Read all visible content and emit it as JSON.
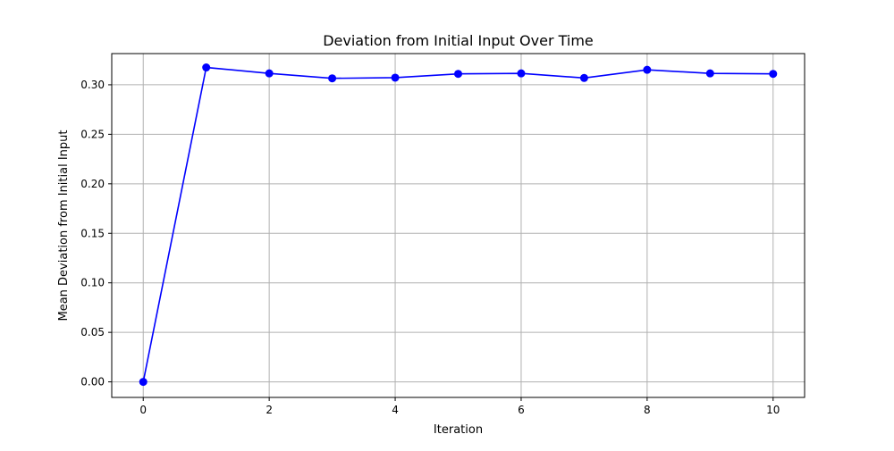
{
  "chart_data": {
    "type": "line",
    "title": "Deviation from Initial Input Over Time",
    "xlabel": "Iteration",
    "ylabel": "Mean Deviation from Initial Input",
    "xlim": [
      -0.5,
      10.5
    ],
    "ylim": [
      -0.0157,
      0.3315
    ],
    "x_ticks": [
      0,
      2,
      4,
      6,
      8,
      10
    ],
    "x_tick_labels": [
      "0",
      "2",
      "4",
      "6",
      "8",
      "10"
    ],
    "y_ticks": [
      0.0,
      0.05,
      0.1,
      0.15,
      0.2,
      0.25,
      0.3
    ],
    "y_tick_labels": [
      "0.00",
      "0.05",
      "0.10",
      "0.15",
      "0.20",
      "0.25",
      "0.30"
    ],
    "grid": true,
    "series": [
      {
        "color": "#0000ff",
        "marker": "circle",
        "x": [
          0,
          1,
          2,
          3,
          4,
          5,
          6,
          7,
          8,
          9,
          10
        ],
        "y": [
          0.0,
          0.3175,
          0.3115,
          0.3065,
          0.3072,
          0.311,
          0.3115,
          0.3069,
          0.3151,
          0.3115,
          0.311
        ]
      }
    ],
    "colors": {
      "grid": "#b0b0b0",
      "axes": "#000000",
      "series": "#0000ff"
    }
  }
}
